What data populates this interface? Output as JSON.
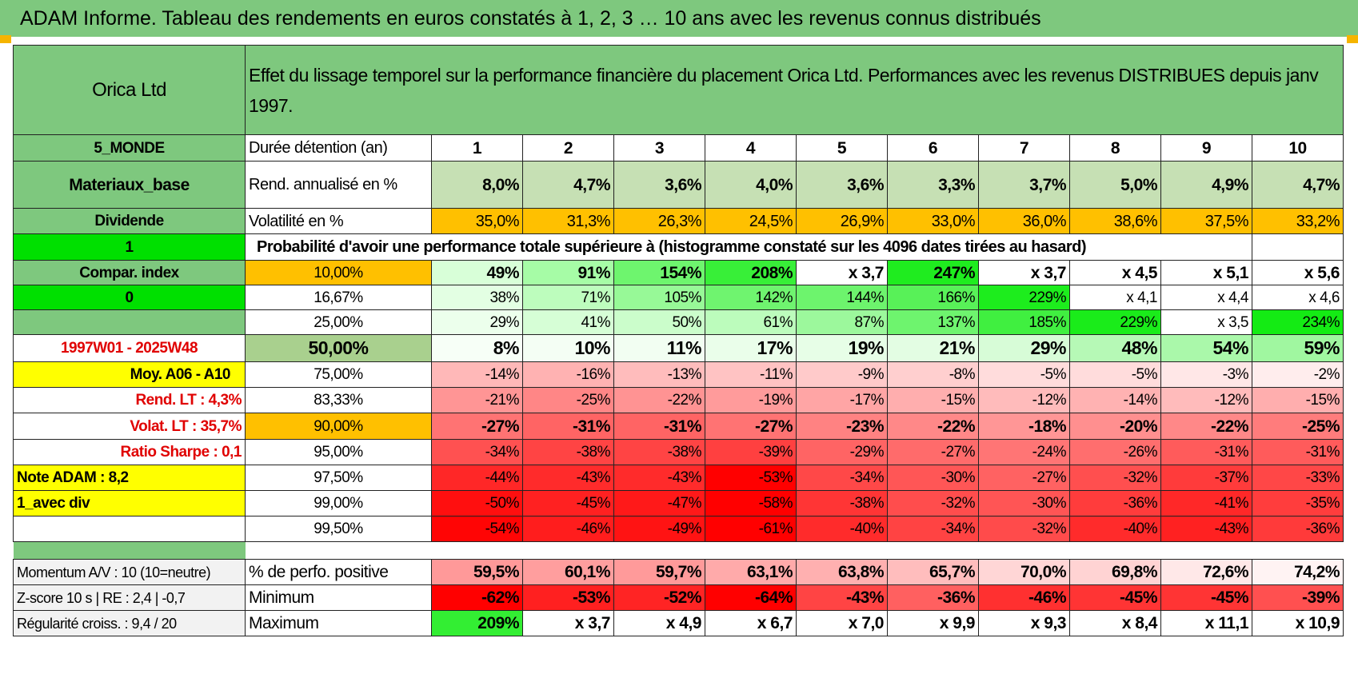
{
  "title": "ADAM Informe. Tableau des rendements en euros constatés à 1, 2, 3 … 10 ans avec les revenus connus distribués",
  "header": {
    "company": "Orica Ltd",
    "description": "Effet du lissage temporel sur la performance financière du placement Orica Ltd. Performances avec les revenus DISTRIBUES depuis janv 1997."
  },
  "left": {
    "region": "5_MONDE",
    "sector": "Materiaux_base",
    "type": "Dividende",
    "flag1": "1",
    "compar": "Compar. index",
    "flag0": "0",
    "period": "1997W01 - 2025W48",
    "moy": "Moy. A06 - A10",
    "rend_lt": "Rend. LT :    4,3%",
    "volat_lt": "Volat. LT :    35,7%",
    "sharpe": "Ratio Sharpe :    0,1",
    "note": "Note ADAM : 8,2",
    "variant": "1_avec div"
  },
  "rows": {
    "duration_label": "Durée détention (an)",
    "rend_label": "Rend. annualisé en %",
    "vol_label": "Volatilité en %",
    "prob_title": "Probabilité d'avoir une performance totale supérieure à (histogramme constaté sur les 4096 dates tirées au hasard)"
  },
  "years": [
    "1",
    "2",
    "3",
    "4",
    "5",
    "6",
    "7",
    "8",
    "9",
    "10"
  ],
  "rend": [
    "8,0%",
    "4,7%",
    "3,6%",
    "4,0%",
    "3,6%",
    "3,3%",
    "3,7%",
    "5,0%",
    "4,9%",
    "4,7%"
  ],
  "vol": [
    "35,0%",
    "31,3%",
    "26,3%",
    "24,5%",
    "26,9%",
    "33,0%",
    "36,0%",
    "38,6%",
    "37,5%",
    "33,2%"
  ],
  "prob_rows": [
    {
      "p": "10,00%",
      "v": [
        "49%",
        "91%",
        "154%",
        "208%",
        "x 3,7",
        "247%",
        "x 3,7",
        "x 4,5",
        "x 5,1",
        "x 5,6"
      ]
    },
    {
      "p": "16,67%",
      "v": [
        "38%",
        "71%",
        "105%",
        "142%",
        "144%",
        "166%",
        "229%",
        "x 4,1",
        "x 4,4",
        "x 4,6"
      ]
    },
    {
      "p": "25,00%",
      "v": [
        "29%",
        "41%",
        "50%",
        "61%",
        "87%",
        "137%",
        "185%",
        "229%",
        "x 3,5",
        "234%"
      ]
    },
    {
      "p": "50,00%",
      "v": [
        "8%",
        "10%",
        "11%",
        "17%",
        "19%",
        "21%",
        "29%",
        "48%",
        "54%",
        "59%"
      ]
    },
    {
      "p": "75,00%",
      "v": [
        "-14%",
        "-16%",
        "-13%",
        "-11%",
        "-9%",
        "-8%",
        "-5%",
        "-5%",
        "-3%",
        "-2%"
      ]
    },
    {
      "p": "83,33%",
      "v": [
        "-21%",
        "-25%",
        "-22%",
        "-19%",
        "-17%",
        "-15%",
        "-12%",
        "-14%",
        "-12%",
        "-15%"
      ]
    },
    {
      "p": "90,00%",
      "v": [
        "-27%",
        "-31%",
        "-31%",
        "-27%",
        "-23%",
        "-22%",
        "-18%",
        "-20%",
        "-22%",
        "-25%"
      ]
    },
    {
      "p": "95,00%",
      "v": [
        "-34%",
        "-38%",
        "-38%",
        "-39%",
        "-29%",
        "-27%",
        "-24%",
        "-26%",
        "-31%",
        "-31%"
      ]
    },
    {
      "p": "97,50%",
      "v": [
        "-44%",
        "-43%",
        "-43%",
        "-53%",
        "-34%",
        "-30%",
        "-27%",
        "-32%",
        "-37%",
        "-33%"
      ]
    },
    {
      "p": "99,00%",
      "v": [
        "-50%",
        "-45%",
        "-47%",
        "-58%",
        "-38%",
        "-32%",
        "-30%",
        "-36%",
        "-41%",
        "-35%"
      ]
    },
    {
      "p": "99,50%",
      "v": [
        "-54%",
        "-46%",
        "-49%",
        "-61%",
        "-40%",
        "-34%",
        "-32%",
        "-40%",
        "-43%",
        "-36%"
      ]
    }
  ],
  "bottom": {
    "momentum_label": "Momentum A/V : 10 (10=neutre)",
    "zscore_label": "Z-score 10 s | RE : 2,4 | -0,7",
    "regul_label": "Régularité croiss. : 9,4 / 20",
    "pos_label": "% de perfo. positive",
    "min_label": "Minimum",
    "max_label": "Maximum",
    "pos": [
      "59,5%",
      "60,1%",
      "59,7%",
      "63,1%",
      "63,8%",
      "65,7%",
      "70,0%",
      "69,8%",
      "72,6%",
      "74,2%"
    ],
    "min": [
      "-62%",
      "-53%",
      "-52%",
      "-64%",
      "-43%",
      "-36%",
      "-46%",
      "-45%",
      "-45%",
      "-39%"
    ],
    "max": [
      "209%",
      "x 3,7",
      "x 4,9",
      "x 6,7",
      "x 7,0",
      "x 9,9",
      "x 9,3",
      "x 8,4",
      "x 11,1",
      "x 10,9"
    ]
  },
  "colors": {
    "header_green": "#7ec87e",
    "bright_green": "#00e000",
    "orange": "#ffc000",
    "yellow": "#ffff00",
    "label_red": "#e00000",
    "rend_bg": "#c6e0b4"
  },
  "cell_colors": {
    "prob": [
      [
        "#d8ffd8",
        "#a6fca6",
        "#6ef56e",
        "#38ef38",
        "#ffffff",
        "#1fec1f",
        "#ffffff",
        "#ffffff",
        "#ffffff",
        "#ffffff"
      ],
      [
        "#e3ffe3",
        "#bdfdbd",
        "#97f997",
        "#6ff46f",
        "#6df46d",
        "#58f158",
        "#1ded1d",
        "#ffffff",
        "#ffffff",
        "#ffffff"
      ],
      [
        "#ecffec",
        "#d6fed6",
        "#cbfdcb",
        "#bcfcbc",
        "#9cf89c",
        "#6ef46e",
        "#40ef40",
        "#1aec1a",
        "#ffffff",
        "#14eb14"
      ],
      [
        "#f7fff7",
        "#f4fef4",
        "#f2fef2",
        "#eafeea",
        "#e7fee7",
        "#e3fde3",
        "#d7fcd7",
        "#b6f9b6",
        "#aaf8aa",
        "#a0f7a0"
      ],
      [
        "#ffb8b8",
        "#ffb2b2",
        "#ffbcbc",
        "#ffc3c3",
        "#ffcaca",
        "#ffcfcf",
        "#ffdcdc",
        "#ffdcdc",
        "#ffe7e7",
        "#ffeded"
      ],
      [
        "#ff9595",
        "#ff8686",
        "#ff9393",
        "#ff9b9b",
        "#ffa5a5",
        "#ffaeae",
        "#ffbbbb",
        "#ffb2b2",
        "#ffbbbb",
        "#ffaeae"
      ],
      [
        "#ff7373",
        "#ff6464",
        "#ff6464",
        "#ff7373",
        "#ff8282",
        "#ff8888",
        "#ff9696",
        "#ff8f8f",
        "#ff8888",
        "#ff7c7c"
      ],
      [
        "#ff5151",
        "#ff4444",
        "#ff4444",
        "#ff4040",
        "#ff6464",
        "#ff6b6b",
        "#ff7575",
        "#ff6e6e",
        "#ff5b5b",
        "#ff5b5b"
      ],
      [
        "#ff2727",
        "#ff2b2b",
        "#ff2b2b",
        "#ff0000",
        "#ff4848",
        "#ff5656",
        "#ff6262",
        "#ff4f4f",
        "#ff3b3b",
        "#ff4747"
      ],
      [
        "#ff0f0f",
        "#ff2121",
        "#ff1919",
        "#ff0000",
        "#ff3535",
        "#ff4d4d",
        "#ff5555",
        "#ff3c3c",
        "#ff2828",
        "#ff3d3d"
      ],
      [
        "#ff0505",
        "#ff1d1d",
        "#ff1313",
        "#ff0000",
        "#ff2b2b",
        "#ff4343",
        "#ff4b4b",
        "#ff2b2b",
        "#ff2121",
        "#ff3a3a"
      ]
    ],
    "pos": [
      "#ff9999",
      "#ff9e9e",
      "#ff9a9a",
      "#ffaaaa",
      "#ffb0b0",
      "#ffbdbd",
      "#ffd6d6",
      "#ffd3d3",
      "#ffe8e8",
      "#fff3f3"
    ],
    "min": [
      "#ff0000",
      "#ff2020",
      "#ff2424",
      "#ff0000",
      "#ff4444",
      "#ff6060",
      "#ff3030",
      "#ff3434",
      "#ff3434",
      "#ff5050"
    ],
    "max": [
      "#33ee33",
      "#ffffff",
      "#ffffff",
      "#ffffff",
      "#ffffff",
      "#ffffff",
      "#ffffff",
      "#ffffff",
      "#ffffff",
      "#ffffff"
    ]
  }
}
